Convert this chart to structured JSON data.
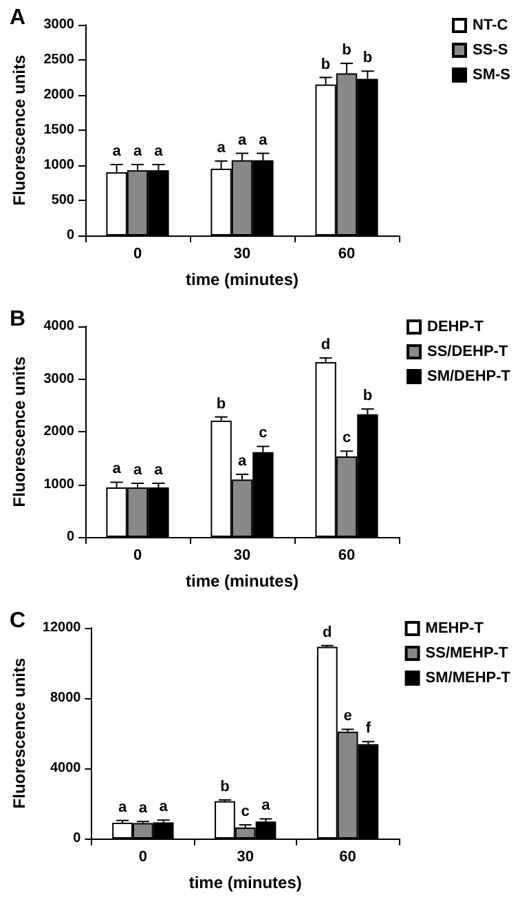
{
  "chart_data": [
    {
      "type": "bar",
      "title": "A",
      "xlabel": "time (minutes)",
      "ylabel": "Fluorescence units",
      "categories": [
        "0",
        "30",
        "60"
      ],
      "legend": "top right",
      "grid": false,
      "ylim": [
        0,
        3000
      ],
      "yticks": [
        0,
        500,
        1000,
        1500,
        2000,
        2500,
        3000
      ],
      "series": [
        {
          "name": "NT-C",
          "color": "#ffffff",
          "values": [
            900,
            950,
            2150
          ],
          "errors": [
            [
              900,
              1010
            ],
            [
              950,
              1060
            ],
            [
              2150,
              2250
            ]
          ],
          "value_labels": [
            "a",
            "a",
            "b"
          ]
        },
        {
          "name": "SS-S",
          "color": "#888888",
          "values": [
            930,
            1070,
            2310
          ],
          "errors": [
            [
              930,
              1010
            ],
            [
              1070,
              1170
            ],
            [
              2310,
              2450
            ]
          ],
          "value_labels": [
            "a",
            "a",
            "b"
          ]
        },
        {
          "name": "SM-S",
          "color": "#000000",
          "values": [
            930,
            1070,
            2230
          ],
          "errors": [
            [
              930,
              1010
            ],
            [
              1070,
              1170
            ],
            [
              2230,
              2340
            ]
          ],
          "value_labels": [
            "a",
            "a",
            "b"
          ]
        }
      ]
    },
    {
      "type": "bar",
      "title": "B",
      "xlabel": "time (minutes)",
      "ylabel": "Fluorescence units",
      "categories": [
        "0",
        "30",
        "60"
      ],
      "legend": "top right",
      "grid": false,
      "ylim": [
        0,
        4000
      ],
      "yticks": [
        0,
        1000,
        2000,
        3000,
        4000
      ],
      "series": [
        {
          "name": "DEHP-T",
          "color": "#ffffff",
          "values": [
            940,
            2210,
            3320
          ],
          "errors": [
            [
              940,
              1040
            ],
            [
              2210,
              2280
            ],
            [
              3320,
              3400
            ]
          ],
          "value_labels": [
            "a",
            "b",
            "d"
          ]
        },
        {
          "name": "SS/DEHP-T",
          "color": "#888888",
          "values": [
            940,
            1090,
            1530
          ],
          "errors": [
            [
              940,
              1020
            ],
            [
              1090,
              1190
            ],
            [
              1530,
              1630
            ]
          ],
          "value_labels": [
            "a",
            "a",
            "c"
          ]
        },
        {
          "name": "SM/DEHP-T",
          "color": "#000000",
          "values": [
            940,
            1610,
            2330
          ],
          "errors": [
            [
              940,
              1020
            ],
            [
              1610,
              1720
            ],
            [
              2330,
              2430
            ]
          ],
          "value_labels": [
            "a",
            "c",
            "b"
          ]
        }
      ]
    },
    {
      "type": "bar",
      "title": "C",
      "xlabel": "time (minutes)",
      "ylabel": "Fluorescence units",
      "categories": [
        "0",
        "30",
        "60"
      ],
      "legend": "top right",
      "grid": false,
      "ylim": [
        0,
        12000
      ],
      "yticks": [
        0,
        4000,
        8000,
        12000
      ],
      "series": [
        {
          "name": "MEHP-T",
          "color": "#ffffff",
          "values": [
            900,
            2130,
            10920
          ],
          "errors": [
            [
              900,
              1030
            ],
            [
              2130,
              2200
            ],
            [
              10920,
              10990
            ]
          ],
          "value_labels": [
            "a",
            "b",
            "d"
          ]
        },
        {
          "name": "SS/MEHP-T",
          "color": "#888888",
          "values": [
            880,
            630,
            6090
          ],
          "errors": [
            [
              880,
              970
            ],
            [
              630,
              780
            ],
            [
              6090,
              6220
            ]
          ],
          "value_labels": [
            "a",
            "c",
            "e"
          ]
        },
        {
          "name": "SM/MEHP-T",
          "color": "#000000",
          "values": [
            920,
            970,
            5370
          ],
          "errors": [
            [
              920,
              1050
            ],
            [
              970,
              1120
            ],
            [
              5370,
              5520
            ]
          ],
          "value_labels": [
            "a",
            "a",
            "f"
          ]
        }
      ]
    }
  ]
}
